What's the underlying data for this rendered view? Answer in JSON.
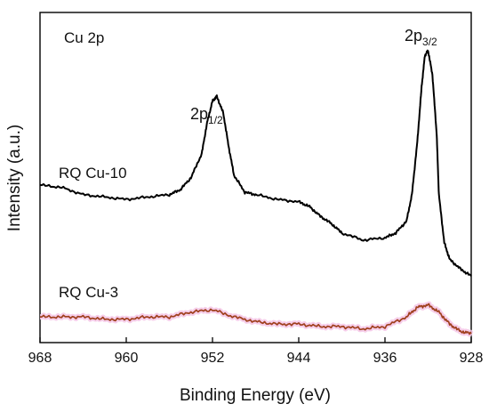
{
  "chart_data": {
    "type": "line",
    "panel_label": "Cu 2p",
    "xlabel": "Binding Energy (eV)",
    "ylabel": "Intensity (a.u.)",
    "x_reversed": true,
    "xlim": [
      968,
      928
    ],
    "xticks": [
      968,
      960,
      952,
      944,
      936,
      928
    ],
    "y_ticks_shown": false,
    "grid": false,
    "annotations": [
      {
        "base": "2p",
        "sub": "1/2",
        "x": 951.7
      },
      {
        "base": "2p",
        "sub": "3/2",
        "x": 932.2
      }
    ],
    "series": [
      {
        "name": "RQ Cu-10",
        "color": "#000000",
        "x": [
          968,
          966,
          964,
          962,
          960,
          958,
          956,
          955,
          954,
          953,
          952.5,
          952,
          951.6,
          951,
          950.5,
          950,
          949,
          948,
          946,
          944,
          943,
          942,
          941,
          940,
          938,
          936,
          935,
          934,
          933.5,
          933,
          932.6,
          932.3,
          932,
          931.6,
          931.2,
          931,
          930.5,
          930,
          929,
          928
        ],
        "y": [
          0.44,
          0.43,
          0.4,
          0.39,
          0.38,
          0.39,
          0.4,
          0.42,
          0.47,
          0.57,
          0.7,
          0.79,
          0.81,
          0.74,
          0.6,
          0.48,
          0.41,
          0.4,
          0.38,
          0.37,
          0.35,
          0.31,
          0.28,
          0.24,
          0.21,
          0.22,
          0.24,
          0.29,
          0.4,
          0.62,
          0.85,
          0.98,
          1.0,
          0.9,
          0.65,
          0.4,
          0.2,
          0.13,
          0.09,
          0.06
        ]
      },
      {
        "name": "RQ Cu-3",
        "color": "#a0401e",
        "x": [
          968,
          966,
          964,
          962,
          960,
          958,
          956,
          954,
          952,
          950,
          948,
          946,
          944,
          942,
          940,
          938,
          936,
          934,
          933,
          932,
          931,
          930,
          929,
          928
        ],
        "y": [
          -0.11,
          -0.11,
          -0.11,
          -0.12,
          -0.12,
          -0.11,
          -0.11,
          -0.09,
          -0.08,
          -0.11,
          -0.13,
          -0.14,
          -0.14,
          -0.15,
          -0.15,
          -0.16,
          -0.15,
          -0.11,
          -0.07,
          -0.06,
          -0.09,
          -0.14,
          -0.17,
          -0.18
        ]
      }
    ]
  }
}
